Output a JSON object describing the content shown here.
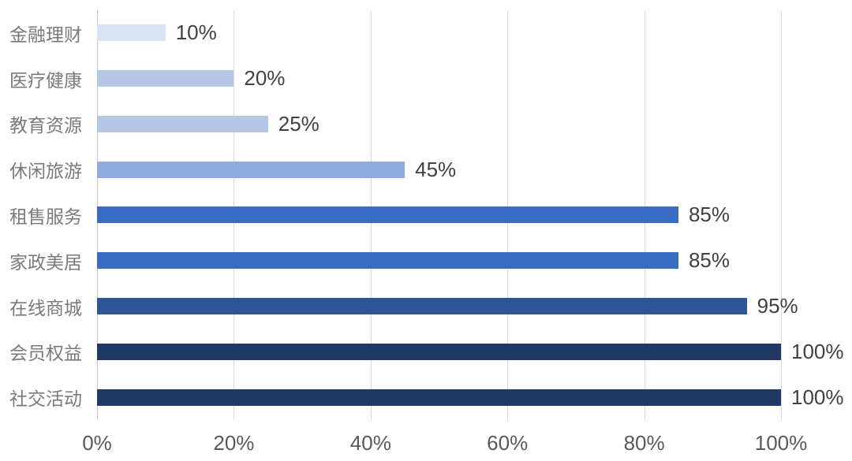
{
  "chart_data": {
    "type": "bar",
    "orientation": "horizontal",
    "title": "",
    "xlabel": "",
    "ylabel": "",
    "xlim": [
      0,
      100
    ],
    "grid": "vertical",
    "legend": "none",
    "categories": [
      "金融理财",
      "医疗健康",
      "教育资源",
      "休闲旅游",
      "租售服务",
      "家政美居",
      "在线商城",
      "会员权益",
      "社交活动"
    ],
    "values": [
      10,
      20,
      25,
      45,
      85,
      85,
      95,
      100,
      100
    ],
    "value_labels": [
      "10%",
      "20%",
      "25%",
      "45%",
      "85%",
      "85%",
      "95%",
      "100%",
      "100%"
    ],
    "bar_colors": [
      "#dae3f3",
      "#b4c7e7",
      "#b4c7e7",
      "#8faadc",
      "#3a6cc4",
      "#3a6cc4",
      "#2f5597",
      "#1f3864",
      "#1f3864"
    ],
    "x_ticks": [
      {
        "value": 0,
        "label": "0%"
      },
      {
        "value": 20,
        "label": "20%"
      },
      {
        "value": 40,
        "label": "40%"
      },
      {
        "value": 60,
        "label": "60%"
      },
      {
        "value": 80,
        "label": "80%"
      },
      {
        "value": 100,
        "label": "100%"
      }
    ],
    "colors": {
      "background": "#ffffff",
      "gridline": "#d9d9d9",
      "axis_line": "#c8c8c8",
      "category_label": "#7a7a7a",
      "value_label": "#404040",
      "tick_label": "#595959"
    }
  }
}
